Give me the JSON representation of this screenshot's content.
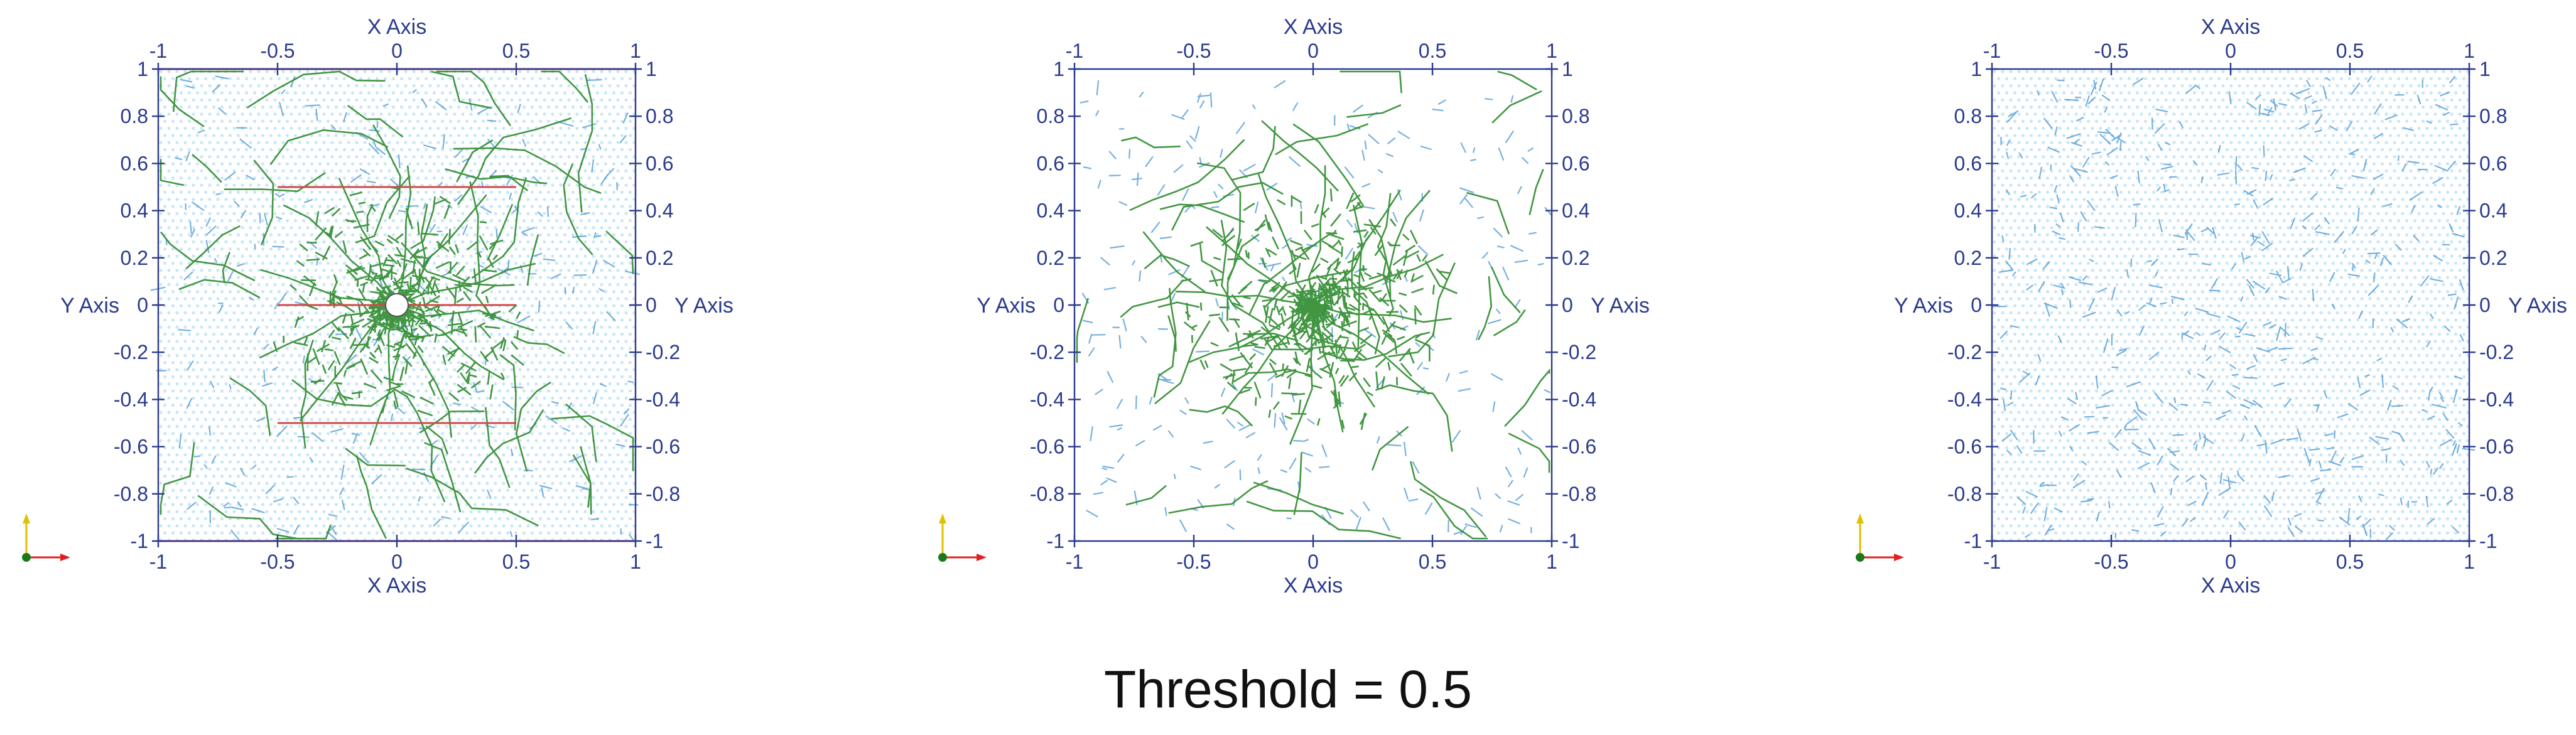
{
  "caption": "Threshold = 0.5",
  "colors": {
    "axis": "#2b3a8c",
    "mesh": "#bfe3f6",
    "blue_edge": "#3d8fd0",
    "green_edge": "#2e8b2e",
    "red_line": "#d04a4a",
    "triad_x": "#e02020",
    "triad_y": "#e0c000",
    "triad_z": "#1a7a1a"
  },
  "axes": {
    "x_label": "X Axis",
    "y_label": "Y Axis",
    "x_ticks": [
      "-1",
      "-0.5",
      "0",
      "0.5",
      "1"
    ],
    "y_ticks": [
      "1",
      "0.8",
      "0.6",
      "0.4",
      "0.2",
      "0",
      "-0.2",
      "-0.4",
      "-0.6",
      "-0.8",
      "-1"
    ],
    "range": [
      -1,
      1
    ]
  },
  "panels": [
    {
      "id": "left",
      "mesh": true,
      "blue_edges": true,
      "green_edges": true,
      "red_lines": true,
      "hole": true
    },
    {
      "id": "middle",
      "mesh": false,
      "blue_edges": true,
      "green_edges": true,
      "red_lines": false,
      "hole": false
    },
    {
      "id": "right",
      "mesh": true,
      "blue_edges": true,
      "green_edges": false,
      "red_lines": false,
      "hole": false
    }
  ]
}
